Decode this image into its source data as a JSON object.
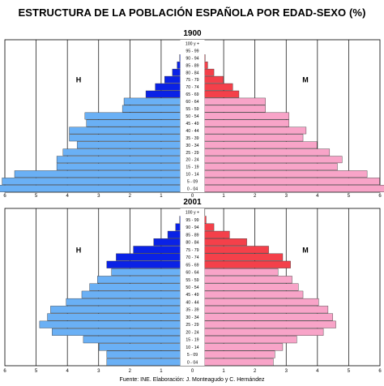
{
  "main_title": "ESTRUCTURA DE LA POBLACIÓN ESPAÑOLA POR EDAD-SEXO (%)",
  "source": "Fuente: INE. Elaboración: J. Monteagudo y C. Hernández",
  "colors": {
    "male_young": "#6ab0f5",
    "male_old": "#0a22e6",
    "female_young": "#f8a4c8",
    "female_old": "#f4404a",
    "grid": "#000000"
  },
  "chart_data": [
    {
      "type": "bar",
      "title": "1900",
      "left_label": "H",
      "right_label": "M",
      "age_groups": [
        "100 y +",
        "95 - 99",
        "90 - 94",
        "85 - 89",
        "80 - 84",
        "75 - 79",
        "70 - 74",
        "65 - 69",
        "60 - 64",
        "55 - 59",
        "50 - 54",
        "45 - 49",
        "40 - 44",
        "35 - 39",
        "30 - 34",
        "25 - 29",
        "20 - 24",
        "15 - 19",
        "10 - 14",
        "5 - 09",
        "0 - 04"
      ],
      "series": [
        {
          "name": "H",
          "values": [
            0,
            0,
            0.02,
            0.1,
            0.25,
            0.5,
            0.8,
            1.1,
            1.8,
            1.85,
            3.05,
            3.0,
            3.55,
            3.55,
            3.3,
            3.75,
            3.95,
            3.95,
            5.3,
            5.7,
            5.9
          ]
        },
        {
          "name": "M",
          "values": [
            0,
            0,
            0.02,
            0.1,
            0.3,
            0.6,
            0.9,
            1.1,
            1.95,
            1.95,
            2.7,
            2.7,
            3.25,
            3.15,
            3.6,
            4.0,
            4.4,
            4.25,
            5.2,
            5.6,
            5.75
          ]
        }
      ],
      "xlim": [
        -6,
        6
      ],
      "x_ticks": [
        6,
        5,
        4,
        3,
        2,
        1,
        0,
        1,
        2,
        3,
        4,
        5,
        6
      ],
      "old_age_start": "65 - 69"
    },
    {
      "type": "bar",
      "title": "2001",
      "left_label": "H",
      "right_label": "M",
      "age_groups": [
        "100 y +",
        "95 - 99",
        "90 - 94",
        "85 - 89",
        "80 - 84",
        "75 - 79",
        "70 - 74",
        "65 - 69",
        "60 - 64",
        "55 - 59",
        "50 - 54",
        "45 - 49",
        "40 - 44",
        "35 - 39",
        "30 - 34",
        "25 - 29",
        "20 - 24",
        "15 - 19",
        "10 - 14",
        "5 - 09",
        "0 - 04"
      ],
      "series": [
        {
          "name": "H",
          "values": [
            0,
            0.02,
            0.15,
            0.4,
            0.85,
            1.5,
            2.05,
            2.35,
            2.2,
            2.65,
            2.9,
            3.15,
            3.65,
            4.15,
            4.25,
            4.5,
            4.1,
            3.1,
            2.6,
            2.35,
            2.35
          ]
        },
        {
          "name": "M",
          "values": [
            0.01,
            0.05,
            0.3,
            0.8,
            1.35,
            2.05,
            2.5,
            2.75,
            2.35,
            2.8,
            3.0,
            3.15,
            3.65,
            3.95,
            4.1,
            4.2,
            3.8,
            2.95,
            2.5,
            2.25,
            2.2
          ]
        }
      ],
      "xlim": [
        -6,
        6
      ],
      "x_ticks": [
        6,
        5,
        4,
        3,
        2,
        1,
        0,
        1,
        2,
        3,
        4,
        5,
        6
      ],
      "old_age_start": "65 - 69"
    }
  ]
}
